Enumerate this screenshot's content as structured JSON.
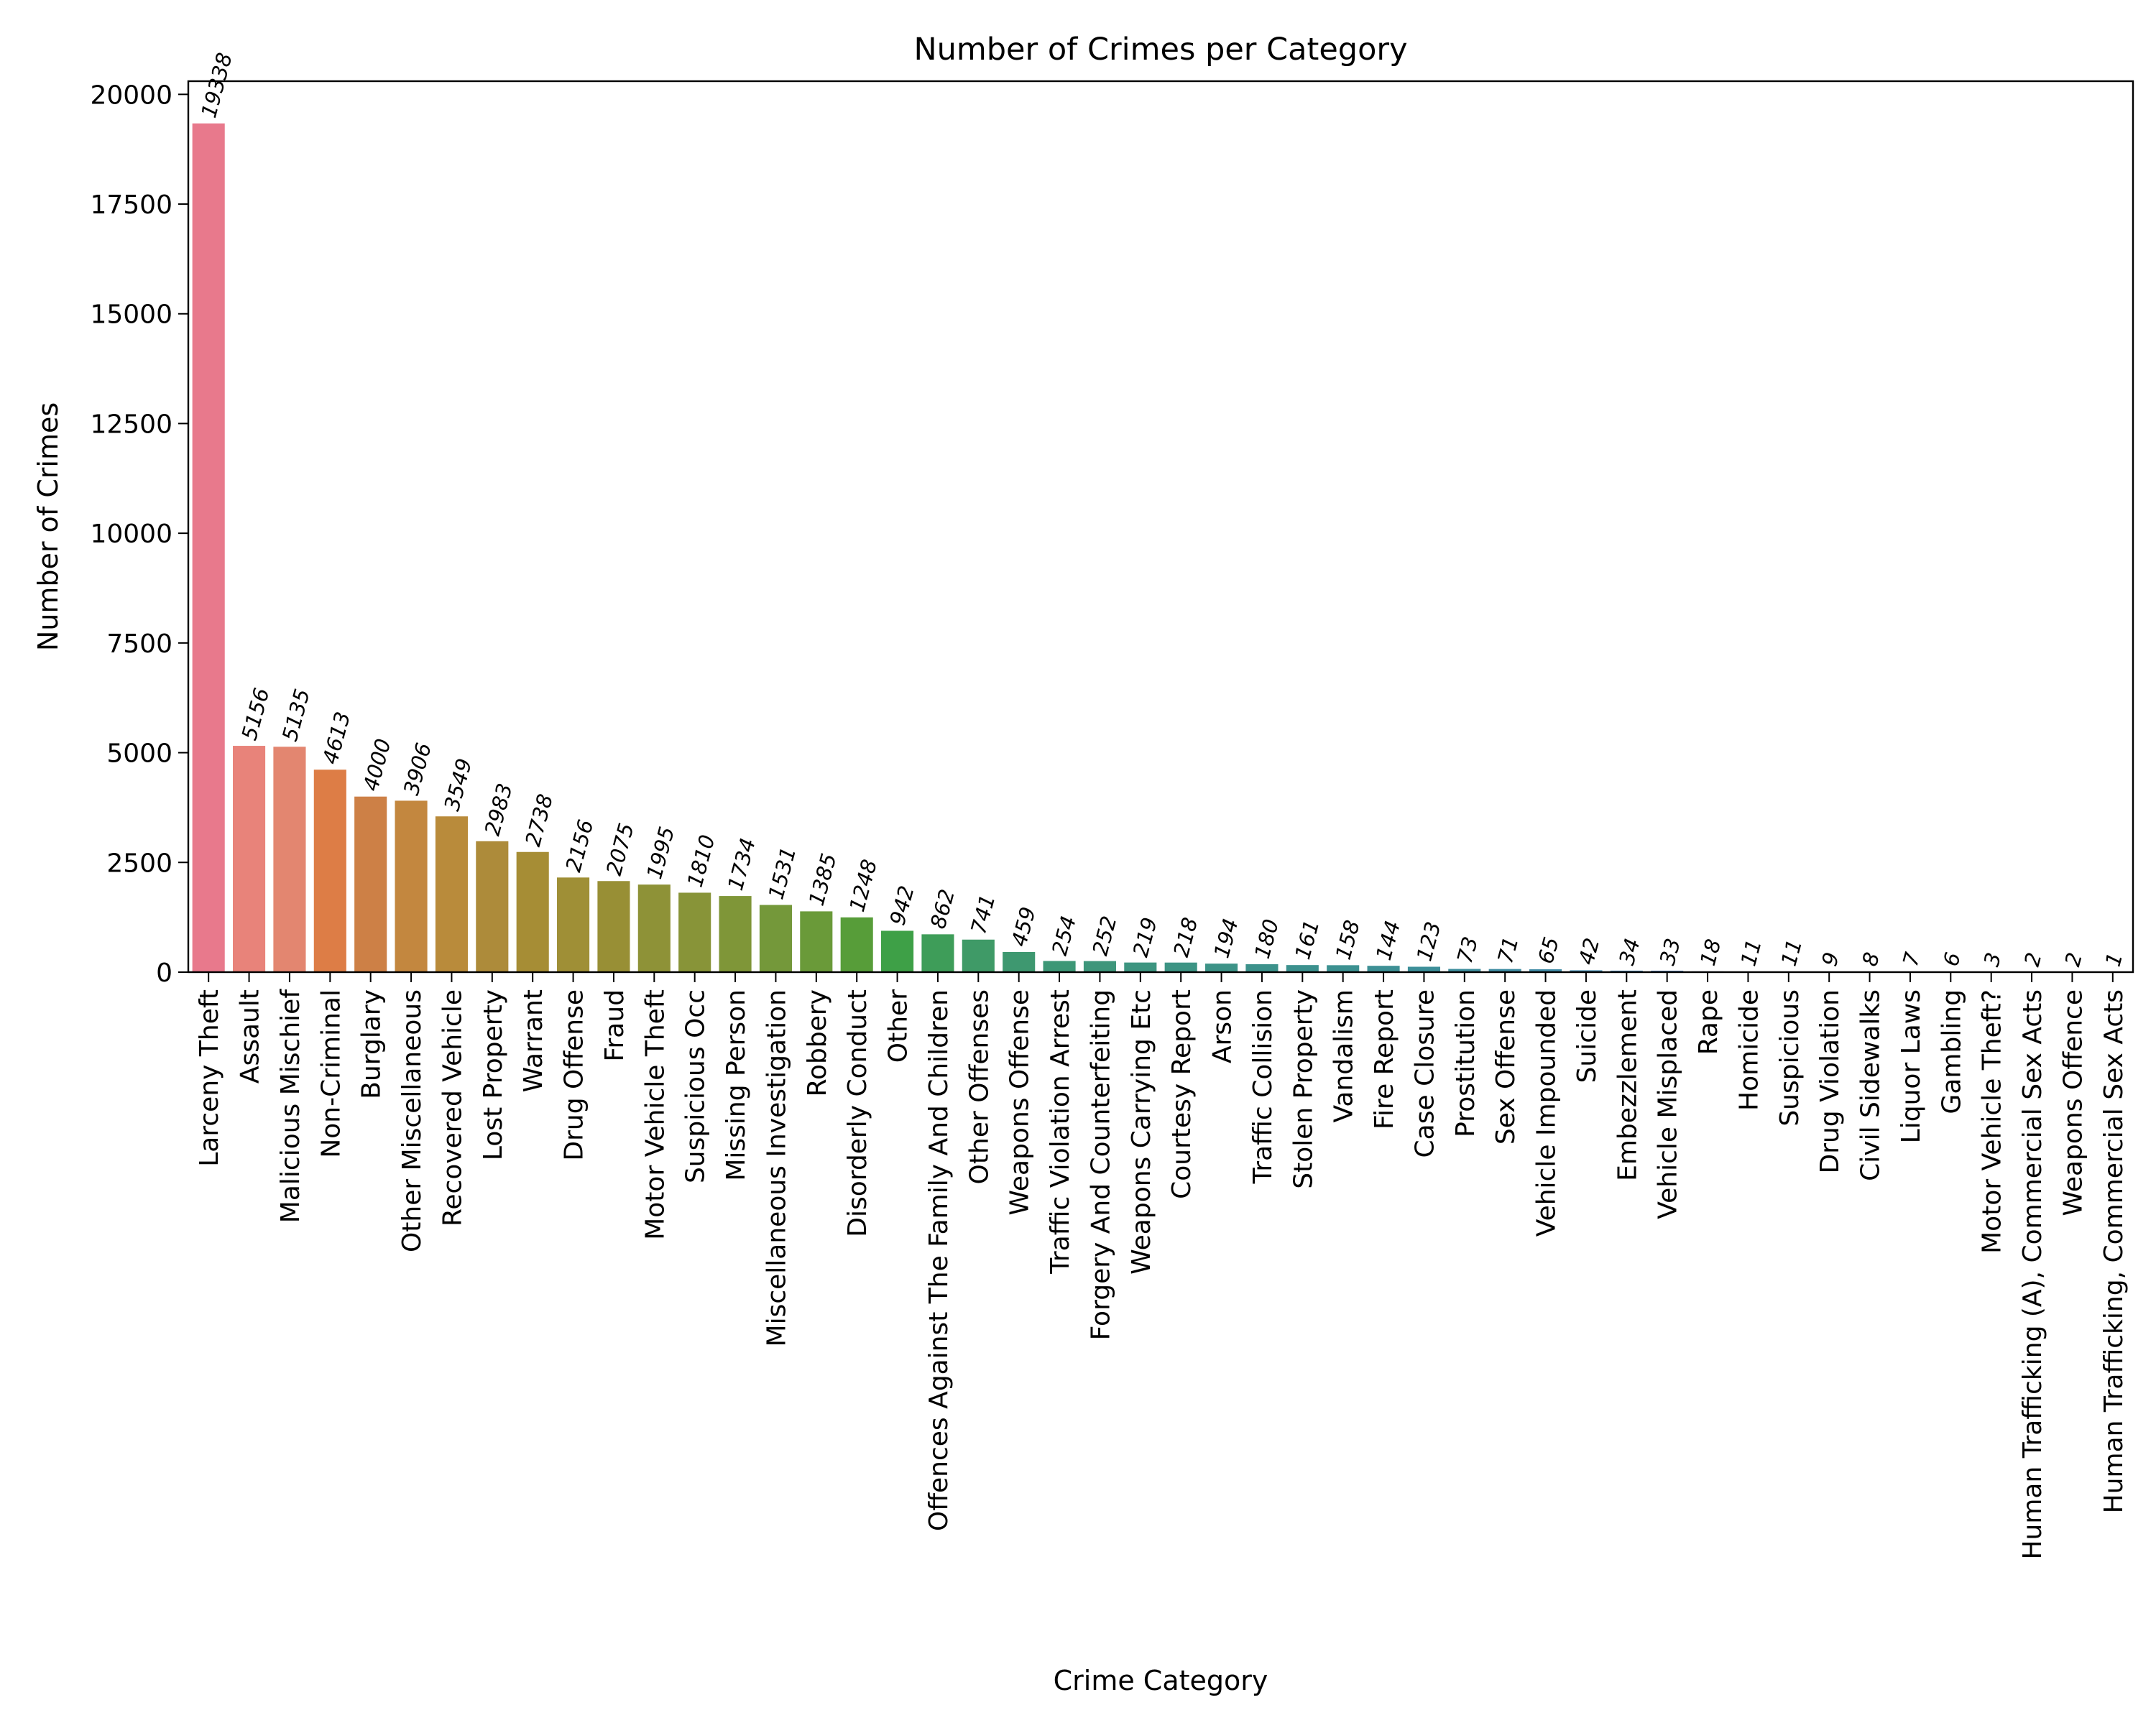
{
  "chart_data": {
    "type": "bar",
    "title": "Number of Crimes per Category",
    "xlabel": "Crime Category",
    "ylabel": "Number of Crimes",
    "ylim": [
      0,
      20300
    ],
    "yticks": [
      0,
      2500,
      5000,
      7500,
      10000,
      12500,
      15000,
      17500,
      20000
    ],
    "grid": false,
    "legend": "none",
    "categories": [
      "Larceny Theft",
      "Assault",
      "Malicious Mischief",
      "Non-Criminal",
      "Burglary",
      "Other Miscellaneous",
      "Recovered Vehicle",
      "Lost Property",
      "Warrant",
      "Drug Offense",
      "Fraud",
      "Motor Vehicle Theft",
      "Suspicious Occ",
      "Missing Person",
      "Miscellaneous Investigation",
      "Robbery",
      "Disorderly Conduct",
      "Other",
      "Offences Against The Family And Children",
      "Other Offenses",
      "Weapons Offense",
      "Traffic Violation Arrest",
      "Forgery And Counterfeiting",
      "Weapons Carrying Etc",
      "Courtesy Report",
      "Arson",
      "Traffic Collision",
      "Stolen Property",
      "Vandalism",
      "Fire Report",
      "Case Closure",
      "Prostitution",
      "Sex Offense",
      "Vehicle Impounded",
      "Suicide",
      "Embezzlement",
      "Vehicle Misplaced",
      "Rape",
      "Homicide",
      "Suspicious",
      "Drug Violation",
      "Civil Sidewalks",
      "Liquor Laws",
      "Gambling",
      "Motor Vehicle Theft?",
      "Human Trafficking (A), Commercial Sex Acts",
      "Weapons Offence",
      "Human Trafficking, Commercial Sex Acts"
    ],
    "values": [
      19338,
      5156,
      5135,
      4613,
      4000,
      3906,
      3549,
      2983,
      2738,
      2156,
      2075,
      1995,
      1810,
      1734,
      1531,
      1385,
      1248,
      942,
      862,
      741,
      459,
      254,
      252,
      219,
      218,
      194,
      180,
      161,
      158,
      144,
      123,
      73,
      71,
      65,
      42,
      34,
      33,
      18,
      11,
      11,
      9,
      8,
      7,
      6,
      3,
      2,
      2,
      1
    ],
    "data_labels": [
      "19338",
      "5156",
      "5135",
      "4613",
      "4000",
      "3906",
      "3549",
      "2983",
      "2738",
      "2156",
      "2075",
      "1995",
      "1810",
      "1734",
      "1531",
      "1385",
      "1248",
      "942",
      "862",
      "741",
      "459",
      "254",
      "252",
      "219",
      "218",
      "194",
      "180",
      "161",
      "158",
      "144",
      "123",
      "73",
      "71",
      "65",
      "42",
      "34",
      "33",
      "18",
      "11",
      "11",
      "9",
      "8",
      "7",
      "6",
      "3",
      "2",
      "2",
      "1"
    ],
    "colors": [
      "#e8798c",
      "#e8837a",
      "#e38670",
      "#dd7d46",
      "#cd8046",
      "#c3873f",
      "#b98b3b",
      "#ad8b3a",
      "#a68d35",
      "#9f8f36",
      "#988f35",
      "#8e9237",
      "#889438",
      "#7f9638",
      "#74983a",
      "#6a9a39",
      "#579d39",
      "#3ea047",
      "#3e9d59",
      "#3f9a67",
      "#3e9870",
      "#3d9776",
      "#3e967b",
      "#3d9580",
      "#3d9484",
      "#3d9387",
      "#3c928b",
      "#3c918e",
      "#3c9191",
      "#3d9095",
      "#3d8f99",
      "#3e8e9d",
      "#3f8da3",
      "#418ca8",
      "#448baf",
      "#4a89b8",
      "#5588c1",
      "#6586ca",
      "#7583d1",
      "#8881d6",
      "#9a7ed9",
      "#ab7bda",
      "#bb77d7",
      "#c873d1",
      "#d56fca",
      "#de6ebe",
      "#e571b2",
      "#e877a4"
    ]
  }
}
